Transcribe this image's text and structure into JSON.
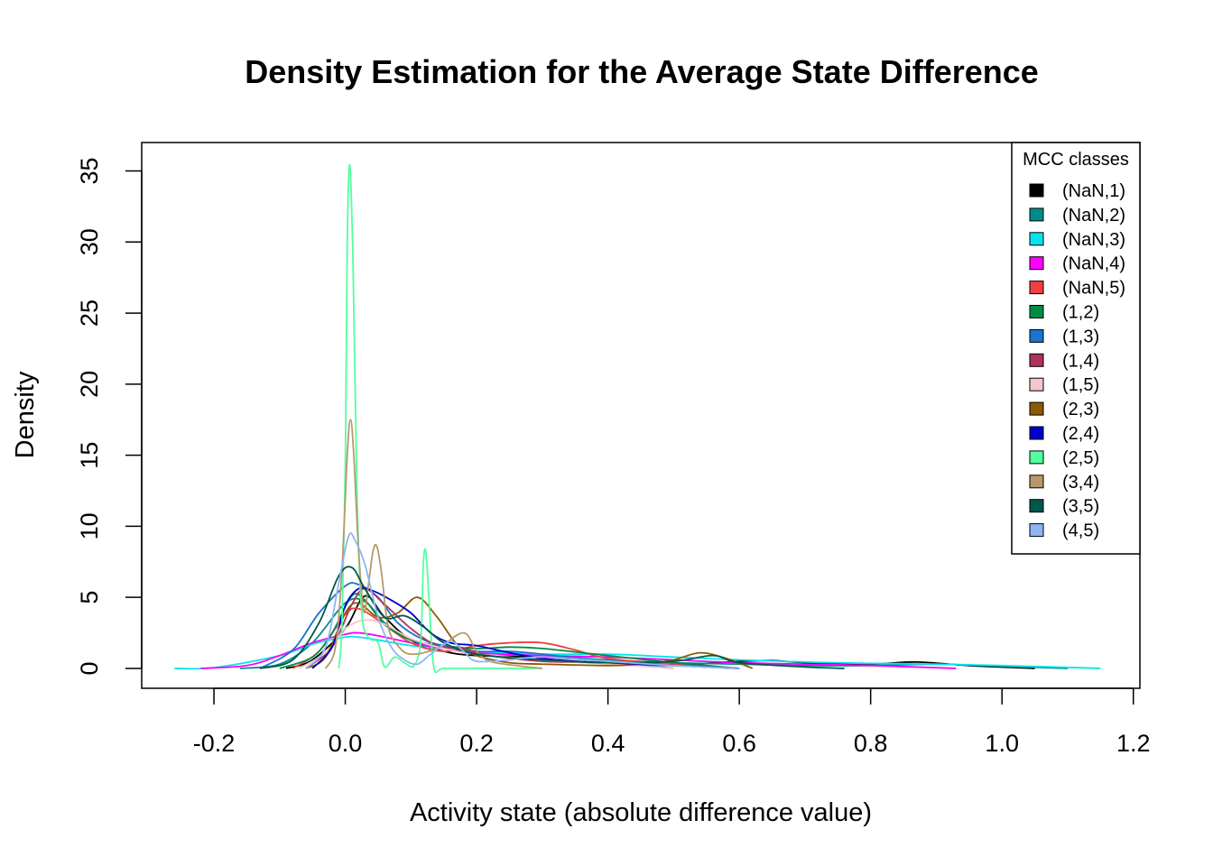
{
  "chart_data": {
    "type": "line",
    "title": "Density Estimation for the Average State Difference",
    "xlabel": "Activity state (absolute difference value)",
    "ylabel": "Density",
    "xlim": [
      -0.31,
      1.21
    ],
    "ylim": [
      -1.4,
      37.0
    ],
    "x_ticks": [
      -0.2,
      0.0,
      0.2,
      0.4,
      0.6,
      0.8,
      1.0,
      1.2
    ],
    "x_tick_labels": [
      "-0.2",
      "0.0",
      "0.2",
      "0.4",
      "0.6",
      "0.8",
      "1.0",
      "1.2"
    ],
    "y_ticks": [
      0,
      5,
      10,
      15,
      20,
      25,
      30,
      35
    ],
    "y_tick_labels": [
      "0",
      "5",
      "10",
      "15",
      "20",
      "25",
      "30",
      "35"
    ],
    "grid": false,
    "legend": {
      "title": "MCC classes",
      "position": "top-right"
    },
    "series": [
      {
        "name": "(NaN,1)",
        "color": "#000000",
        "x": [
          -0.09,
          -0.05,
          0.0,
          0.03,
          0.06,
          0.1,
          0.15,
          0.2,
          0.3,
          0.4,
          0.5,
          0.6,
          0.65,
          0.7,
          0.8,
          0.87,
          0.95,
          1.05
        ],
        "y": [
          0,
          0.6,
          2.8,
          5.1,
          3.6,
          2.0,
          1.2,
          0.9,
          0.8,
          0.5,
          0.25,
          0.5,
          0.55,
          0.4,
          0.3,
          0.45,
          0.2,
          0
        ]
      },
      {
        "name": "(NaN,2)",
        "color": "#008B8B",
        "x": [
          -0.16,
          -0.1,
          -0.05,
          0.0,
          0.03,
          0.06,
          0.1,
          0.15,
          0.2,
          0.3,
          0.4,
          0.5,
          0.6,
          0.7,
          0.8,
          0.9,
          1.0,
          1.1
        ],
        "y": [
          0,
          0.3,
          1.8,
          4.6,
          4.7,
          3.2,
          2.0,
          1.4,
          1.1,
          0.9,
          0.6,
          0.4,
          0.3,
          0.2,
          0.2,
          0.3,
          0.15,
          0
        ]
      },
      {
        "name": "(NaN,3)",
        "color": "#00E5EE",
        "x": [
          -0.26,
          -0.2,
          -0.1,
          -0.05,
          0.0,
          0.02,
          0.05,
          0.1,
          0.15,
          0.2,
          0.3,
          0.4,
          0.5,
          0.6,
          0.7,
          0.8,
          0.9,
          1.0,
          1.15
        ],
        "y": [
          0,
          0.05,
          0.9,
          1.7,
          2.2,
          2.2,
          2.0,
          1.6,
          1.4,
          1.2,
          1.0,
          1.0,
          0.8,
          0.6,
          0.45,
          0.35,
          0.3,
          0.2,
          0
        ]
      },
      {
        "name": "(NaN,4)",
        "color": "#FF00FF",
        "x": [
          -0.22,
          -0.15,
          -0.1,
          -0.05,
          0.0,
          0.02,
          0.05,
          0.1,
          0.15,
          0.2,
          0.3,
          0.4,
          0.5,
          0.6,
          0.7,
          0.8,
          0.93
        ],
        "y": [
          0,
          0.2,
          0.9,
          1.8,
          2.4,
          2.5,
          2.3,
          1.8,
          1.4,
          1.1,
          0.9,
          0.8,
          0.6,
          0.4,
          0.3,
          0.2,
          0
        ]
      },
      {
        "name": "(NaN,5)",
        "color": "#EE4040",
        "x": [
          -0.08,
          -0.04,
          0.0,
          0.02,
          0.05,
          0.1,
          0.15,
          0.2,
          0.25,
          0.3,
          0.35,
          0.4,
          0.5,
          0.6
        ],
        "y": [
          0,
          1.2,
          3.8,
          4.2,
          3.4,
          1.8,
          1.2,
          1.6,
          1.8,
          1.8,
          1.3,
          0.7,
          0.3,
          0
        ]
      },
      {
        "name": "(1,2)",
        "color": "#008B45",
        "x": [
          -0.1,
          -0.05,
          -0.02,
          0.01,
          0.03,
          0.06,
          0.1,
          0.15,
          0.2,
          0.25,
          0.3,
          0.4,
          0.5,
          0.6
        ],
        "y": [
          0,
          0.8,
          2.5,
          5.1,
          4.8,
          3.1,
          2.0,
          1.6,
          1.4,
          1.5,
          1.4,
          0.9,
          0.4,
          0
        ]
      },
      {
        "name": "(1,3)",
        "color": "#1874CD",
        "x": [
          -0.13,
          -0.08,
          -0.04,
          0.0,
          0.02,
          0.05,
          0.08,
          0.12,
          0.16,
          0.2,
          0.25,
          0.3,
          0.4,
          0.5
        ],
        "y": [
          0,
          1.3,
          3.9,
          5.8,
          5.9,
          5.0,
          3.2,
          2.0,
          1.5,
          1.2,
          1.2,
          1.0,
          0.5,
          0
        ]
      },
      {
        "name": "(1,4)",
        "color": "#B03060",
        "x": [
          -0.06,
          -0.02,
          0.01,
          0.03,
          0.06,
          0.1,
          0.14,
          0.18,
          0.22,
          0.3,
          0.4,
          0.5,
          0.6
        ],
        "y": [
          0,
          1.5,
          4.5,
          5.6,
          4.5,
          2.8,
          1.6,
          1.4,
          0.9,
          0.5,
          0.4,
          0.2,
          0
        ]
      },
      {
        "name": "(1,5)",
        "color": "#F5C6CB",
        "x": [
          -0.07,
          -0.03,
          0.0,
          0.03,
          0.06,
          0.1,
          0.15,
          0.2,
          0.3,
          0.4,
          0.5
        ],
        "y": [
          0,
          1.1,
          2.8,
          3.4,
          3.1,
          2.1,
          1.4,
          1.0,
          0.6,
          0.3,
          0
        ]
      },
      {
        "name": "(2,3)",
        "color": "#8B5A00",
        "x": [
          -0.06,
          -0.03,
          0.0,
          0.02,
          0.05,
          0.08,
          0.11,
          0.14,
          0.17,
          0.2,
          0.25,
          0.3,
          0.4,
          0.45,
          0.5,
          0.54,
          0.58,
          0.62
        ],
        "y": [
          0,
          0.8,
          3.9,
          4.6,
          3.6,
          3.9,
          5.0,
          3.6,
          1.7,
          0.9,
          0.4,
          0.3,
          0.2,
          0.3,
          0.6,
          1.1,
          0.7,
          0
        ]
      },
      {
        "name": "(2,4)",
        "color": "#0000CD",
        "x": [
          -0.05,
          -0.02,
          0.0,
          0.02,
          0.04,
          0.07,
          0.1,
          0.13,
          0.16,
          0.2,
          0.25,
          0.3,
          0.35,
          0.4,
          0.5,
          0.6
        ],
        "y": [
          0,
          1.5,
          4.4,
          5.6,
          5.5,
          4.8,
          3.9,
          2.5,
          1.8,
          1.6,
          1.1,
          0.7,
          0.5,
          0.4,
          0.2,
          0
        ]
      },
      {
        "name": "(2,5)",
        "color": "#54FF9F",
        "x": [
          -0.01,
          -0.005,
          0.0,
          0.003,
          0.007,
          0.012,
          0.018,
          0.025,
          0.035,
          0.05,
          0.06,
          0.075,
          0.09,
          0.105,
          0.115,
          0.119,
          0.123,
          0.128,
          0.135,
          0.15,
          0.2,
          0.25,
          0.3
        ],
        "y": [
          0,
          3,
          14,
          30,
          35.4,
          28,
          12,
          4,
          2.2,
          1.8,
          0.1,
          0.8,
          0.4,
          0.2,
          2,
          7.5,
          8.1,
          4.5,
          0.05,
          0,
          0,
          0,
          0
        ]
      },
      {
        "name": "(3,4)",
        "color": "#B8986A",
        "x": [
          -0.03,
          -0.015,
          -0.005,
          0.003,
          0.008,
          0.013,
          0.02,
          0.028,
          0.035,
          0.042,
          0.048,
          0.055,
          0.065,
          0.08,
          0.1,
          0.14,
          0.18,
          0.2,
          0.22,
          0.26,
          0.3
        ],
        "y": [
          0,
          1.5,
          7,
          15,
          17.5,
          15,
          8.5,
          4.0,
          5.8,
          8.2,
          8.6,
          6.8,
          3.0,
          1.6,
          1.0,
          1.4,
          2.5,
          1.2,
          0.5,
          0.2,
          0
        ]
      },
      {
        "name": "(3,5)",
        "color": "#00574B",
        "x": [
          -0.13,
          -0.08,
          -0.04,
          -0.01,
          0.01,
          0.03,
          0.06,
          0.09,
          0.12,
          0.15,
          0.2,
          0.3,
          0.4,
          0.5,
          0.56,
          0.6,
          0.7,
          0.76
        ],
        "y": [
          0,
          0.6,
          3.2,
          6.5,
          7.1,
          5.6,
          3.6,
          3.7,
          2.9,
          1.8,
          1.0,
          0.6,
          0.4,
          0.5,
          0.9,
          0.4,
          0.1,
          0
        ]
      },
      {
        "name": "(4,5)",
        "color": "#8DB6F7",
        "x": [
          -0.06,
          -0.03,
          -0.01,
          0.005,
          0.015,
          0.03,
          0.05,
          0.07,
          0.09,
          0.11,
          0.13,
          0.16,
          0.18,
          0.2,
          0.25,
          0.3,
          0.4,
          0.5,
          0.6
        ],
        "y": [
          0,
          1.5,
          6,
          9.3,
          9.0,
          7.3,
          3.6,
          1.5,
          0.6,
          0.3,
          1.0,
          1.9,
          1.2,
          0.5,
          0.6,
          0.8,
          0.5,
          0.2,
          0
        ]
      }
    ]
  }
}
